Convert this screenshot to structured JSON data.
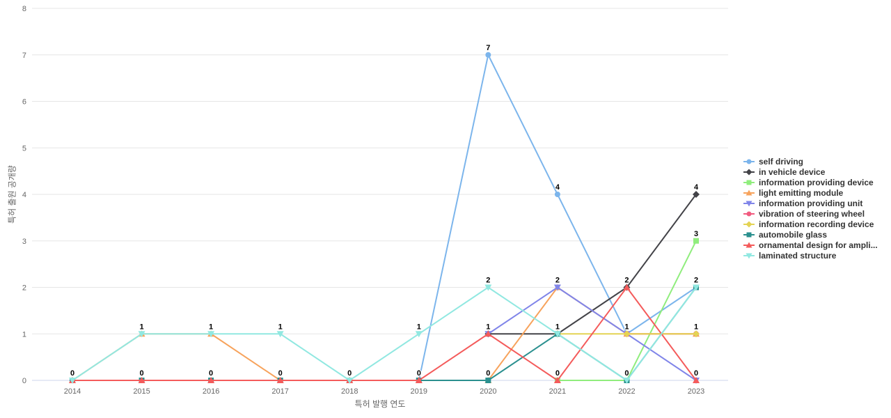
{
  "chart_data": {
    "type": "line",
    "title": "",
    "xlabel": "특허 발행 연도",
    "ylabel": "특허 출원 공개량",
    "x": [
      2014,
      2015,
      2016,
      2017,
      2018,
      2019,
      2020,
      2021,
      2022,
      2023
    ],
    "ylim": [
      0,
      8
    ],
    "yticks": [
      0,
      1,
      2,
      3,
      4,
      5,
      6,
      7,
      8
    ],
    "grid": true,
    "legend_position": "right",
    "colors": {
      "grid": "#e6e6e6",
      "axis_line": "#ccd6eb",
      "tick_label": "#666666",
      "axis_title": "#666666",
      "data_label": "#000000",
      "legend_text": "#333333"
    },
    "series": [
      {
        "name": "self driving",
        "color": "#7cb5ec",
        "marker": "circle",
        "values": [
          null,
          null,
          null,
          null,
          null,
          0,
          7,
          4,
          1,
          2
        ]
      },
      {
        "name": "in vehicle device",
        "color": "#434348",
        "marker": "diamond",
        "values": [
          null,
          null,
          null,
          null,
          null,
          null,
          1,
          1,
          2,
          4
        ]
      },
      {
        "name": "information providing device",
        "color": "#90ed7d",
        "marker": "square",
        "values": [
          null,
          null,
          null,
          null,
          null,
          null,
          null,
          0,
          0,
          3
        ]
      },
      {
        "name": "light emitting module",
        "color": "#f7a35c",
        "marker": "triangle",
        "values": [
          0,
          1,
          1,
          0,
          0,
          0,
          0,
          2,
          1,
          1
        ]
      },
      {
        "name": "information providing unit",
        "color": "#8085e9",
        "marker": "triangle-down",
        "values": [
          null,
          null,
          null,
          null,
          null,
          null,
          1,
          2,
          1,
          0
        ]
      },
      {
        "name": "vibration of steering wheel",
        "color": "#f15c80",
        "marker": "circle",
        "values": [
          null,
          null,
          null,
          null,
          null,
          null,
          null,
          null,
          1,
          1
        ]
      },
      {
        "name": "information recording device",
        "color": "#e4d354",
        "marker": "diamond",
        "values": [
          null,
          null,
          null,
          null,
          null,
          null,
          null,
          1,
          1,
          1
        ]
      },
      {
        "name": "automobile glass",
        "color": "#2b908f",
        "marker": "square",
        "values": [
          0,
          0,
          0,
          0,
          0,
          0,
          0,
          1,
          0,
          2
        ]
      },
      {
        "name": "ornamental design for ampli...",
        "color": "#f45b5b",
        "marker": "triangle",
        "values": [
          0,
          0,
          0,
          0,
          0,
          0,
          1,
          0,
          2,
          0
        ]
      },
      {
        "name": "laminated structure",
        "color": "#91e8e1",
        "marker": "triangle-down",
        "values": [
          0,
          1,
          1,
          1,
          0,
          1,
          2,
          1,
          0,
          2
        ]
      }
    ]
  }
}
